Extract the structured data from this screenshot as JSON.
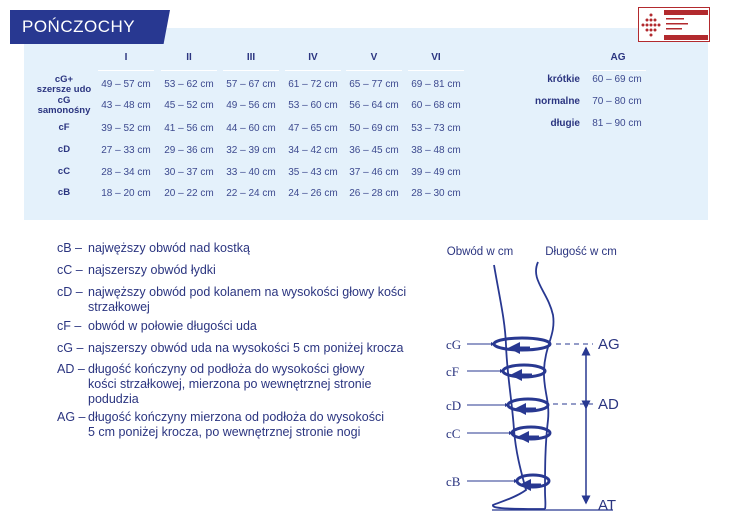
{
  "title": "POŃCZOCHY",
  "logo": {
    "text": "GÜTEZEICHEN MEDIZINISCHE KOMPRESSIONS-STRÜMPFE RAL",
    "color": "#b22a2e"
  },
  "colors": {
    "brand": "#283891",
    "panel": "#e4f1fb"
  },
  "table": {
    "columns": [
      "I",
      "II",
      "III",
      "IV",
      "V",
      "VI"
    ],
    "rows": [
      {
        "label": "cG+",
        "sub": "szersze udo",
        "values": [
          "49 – 57 cm",
          "53 – 62 cm",
          "57 – 67 cm",
          "61 – 72 cm",
          "65 – 77 cm",
          "69 – 81 cm"
        ]
      },
      {
        "label": "cG",
        "sub": "samonośny",
        "values": [
          "43 – 48 cm",
          "45 – 52 cm",
          "49 – 56 cm",
          "53 – 60 cm",
          "56 – 64 cm",
          "60 – 68 cm"
        ]
      },
      {
        "label": "cF",
        "sub": "",
        "values": [
          "39 – 52 cm",
          "41 – 56 cm",
          "44 – 60 cm",
          "47 – 65 cm",
          "50 – 69 cm",
          "53 – 73 cm"
        ]
      },
      {
        "label": "cD",
        "sub": "",
        "values": [
          "27 – 33 cm",
          "29 – 36 cm",
          "32 – 39 cm",
          "34 – 42 cm",
          "36 – 45 cm",
          "38 – 48 cm"
        ]
      },
      {
        "label": "cC",
        "sub": "",
        "values": [
          "28 – 34 cm",
          "30 – 37 cm",
          "33 – 40 cm",
          "35 – 43 cm",
          "37 – 46 cm",
          "39 – 49 cm"
        ]
      },
      {
        "label": "cB",
        "sub": "",
        "values": [
          "18 – 20 cm",
          "20 – 22 cm",
          "22 – 24 cm",
          "24 – 26 cm",
          "26 – 28 cm",
          "28 – 30 cm"
        ]
      }
    ]
  },
  "ag_table": {
    "header": "AG",
    "rows": [
      {
        "label": "krótkie",
        "value": "60 – 69 cm"
      },
      {
        "label": "normalne",
        "value": "70 – 80 cm"
      },
      {
        "label": "długie",
        "value": "81 – 90 cm"
      }
    ]
  },
  "legend": [
    {
      "code": "cB –",
      "lines": [
        "najwęższy obwód nad kostką"
      ]
    },
    {
      "code": "cC –",
      "lines": [
        "najszerszy obwód łydki"
      ]
    },
    {
      "code": "cD –",
      "lines": [
        "najwęższy obwód pod kolanem na wysokości głowy kości",
        "strzałkowej"
      ]
    },
    {
      "code": "cF –",
      "lines": [
        "obwód w połowie długości uda"
      ]
    },
    {
      "code": "cG –",
      "lines": [
        "najszerszy obwód uda na wysokości 5 cm poniżej krocza"
      ]
    },
    {
      "code": "AD –",
      "lines": [
        "długość kończyny od podłoża do wysokości głowy",
        "kości strzałkowej, mierzona po wewnętrznej stronie",
        "podudzia"
      ]
    },
    {
      "code": "AG –",
      "lines": [
        "długość kończyny mierzona od podłoża do wysokości",
        "5 cm poniżej krocza, po wewnętrznej stronie nogi"
      ]
    }
  ],
  "diagram": {
    "circumference_label": "Obwód w cm",
    "length_label": "Długość w cm",
    "points": [
      "cG",
      "cF",
      "cD",
      "cC",
      "cB"
    ],
    "lengths": [
      "AG",
      "AD",
      "AT"
    ]
  }
}
